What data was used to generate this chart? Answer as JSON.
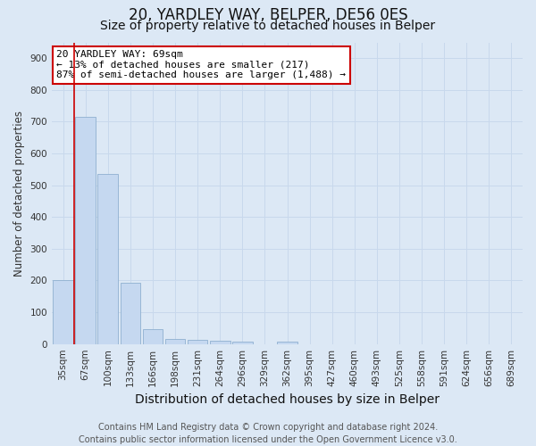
{
  "title": "20, YARDLEY WAY, BELPER, DE56 0ES",
  "subtitle": "Size of property relative to detached houses in Belper",
  "xlabel": "Distribution of detached houses by size in Belper",
  "ylabel": "Number of detached properties",
  "categories": [
    "35sqm",
    "67sqm",
    "100sqm",
    "133sqm",
    "166sqm",
    "198sqm",
    "231sqm",
    "264sqm",
    "296sqm",
    "329sqm",
    "362sqm",
    "395sqm",
    "427sqm",
    "460sqm",
    "493sqm",
    "525sqm",
    "558sqm",
    "591sqm",
    "624sqm",
    "656sqm",
    "689sqm"
  ],
  "values": [
    202,
    715,
    537,
    192,
    46,
    17,
    12,
    11,
    8,
    0,
    8,
    0,
    0,
    0,
    0,
    0,
    0,
    0,
    0,
    0,
    0
  ],
  "bar_color": "#c5d8f0",
  "bar_edge_color": "#8fb0d0",
  "annotation_line1": "20 YARDLEY WAY: 69sqm",
  "annotation_line2": "← 13% of detached houses are smaller (217)",
  "annotation_line3": "87% of semi-detached houses are larger (1,488) →",
  "annotation_box_color": "#ffffff",
  "annotation_box_edge": "#cc0000",
  "vline_color": "#cc0000",
  "vline_x": 0.5,
  "ylim": [
    0,
    950
  ],
  "yticks": [
    0,
    100,
    200,
    300,
    400,
    500,
    600,
    700,
    800,
    900
  ],
  "grid_color": "#c8d8ec",
  "bg_color": "#dce8f5",
  "footer_line1": "Contains HM Land Registry data © Crown copyright and database right 2024.",
  "footer_line2": "Contains public sector information licensed under the Open Government Licence v3.0.",
  "title_fontsize": 12,
  "subtitle_fontsize": 10,
  "xlabel_fontsize": 10,
  "ylabel_fontsize": 8.5,
  "tick_fontsize": 7.5,
  "annot_fontsize": 8,
  "footer_fontsize": 7
}
